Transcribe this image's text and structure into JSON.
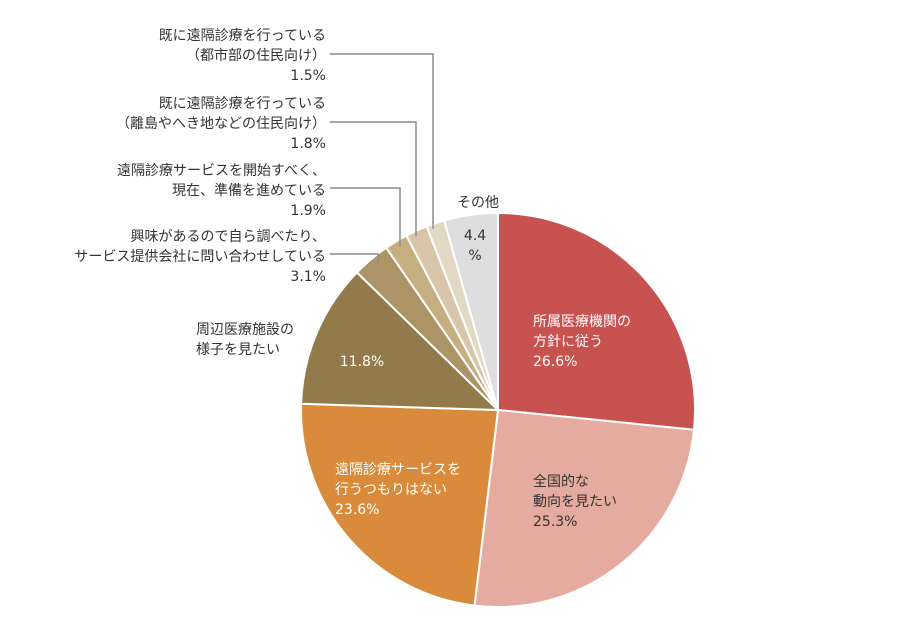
{
  "chart_data": {
    "type": "pie",
    "title": "",
    "start": "12 o'clock",
    "direction": "clockwise",
    "slices": [
      {
        "name": "所属医療機関の方針に従う",
        "value": 26.6,
        "color": "#c75250",
        "label_lines": [
          "所属医療機関の",
          "方針に従う",
          "26.6%"
        ],
        "label_color": "#ffffff"
      },
      {
        "name": "全国的な動向を見たい",
        "value": 25.3,
        "color": "#e5aba0",
        "label_lines": [
          "全国的な",
          "動向を見たい",
          "25.3%"
        ],
        "label_color": "#333333"
      },
      {
        "name": "遠隔診療サービスを行うつもりはない",
        "value": 23.6,
        "color": "#d98b3b",
        "label_lines": [
          "遠隔診療サービスを",
          "行うつもりはない",
          "23.6%"
        ],
        "label_color": "#ffffff"
      },
      {
        "name": "周辺医療施設の様子を見たい",
        "value": 11.8,
        "color": "#927a4a",
        "label_lines": [
          "11.8%"
        ],
        "label_color": "#ffffff",
        "outside_lines": [
          "周辺医療施設の",
          "様子を見たい"
        ]
      },
      {
        "name": "興味があるので自ら調べたり、サービス提供会社に問い合わせしている",
        "value": 3.1,
        "color": "#ad9467",
        "outside_lines": [
          "興味があるので自ら調べたり、",
          "サービス提供会社に問い合わせしている",
          "3.1%"
        ]
      },
      {
        "name": "遠隔診療サービスを開始すべく、現在、準備を進めている",
        "value": 1.9,
        "color": "#c5ae80",
        "outside_lines": [
          "遠隔診療サービスを開始すべく、",
          "現在、準備を進めている",
          "1.9%"
        ]
      },
      {
        "name": "既に遠隔診療を行っている（離島やへき地などの住民向け）",
        "value": 1.8,
        "color": "#d9c6aa",
        "outside_lines": [
          "既に遠隔診療を行っている",
          "（離島やへき地などの住民向け）",
          "1.8%"
        ]
      },
      {
        "name": "既に遠隔診療を行っている（都市部の住民向け）",
        "value": 1.5,
        "color": "#e3d8c3",
        "outside_lines": [
          "既に遠隔診療を行っている",
          "（都市部の住民向け）",
          "1.5%"
        ]
      },
      {
        "name": "その他",
        "value": 4.4,
        "color": "#dedede",
        "label_lines": [
          "4.4",
          "%"
        ],
        "label_color": "#333333",
        "outside_lines": [
          "その他"
        ]
      }
    ]
  }
}
